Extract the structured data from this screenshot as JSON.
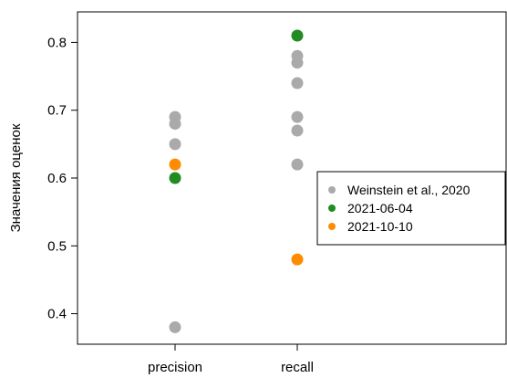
{
  "chart_data": {
    "type": "scatter",
    "title": "",
    "xlabel": "",
    "ylabel": "Значения оценок",
    "categories": [
      "precision",
      "recall"
    ],
    "ylim": [
      0.355,
      0.845
    ],
    "yticks": [
      "0.4",
      "0.5",
      "0.6",
      "0.7",
      "0.8"
    ],
    "grid": false,
    "legend_position": "right",
    "series": [
      {
        "name": "Weinstein et al., 2020",
        "color": "#aaaaaa",
        "points": [
          {
            "x": "precision",
            "y": 0.69
          },
          {
            "x": "precision",
            "y": 0.68
          },
          {
            "x": "precision",
            "y": 0.65
          },
          {
            "x": "precision",
            "y": 0.38
          },
          {
            "x": "recall",
            "y": 0.78
          },
          {
            "x": "recall",
            "y": 0.77
          },
          {
            "x": "recall",
            "y": 0.74
          },
          {
            "x": "recall",
            "y": 0.69
          },
          {
            "x": "recall",
            "y": 0.67
          },
          {
            "x": "recall",
            "y": 0.62
          }
        ]
      },
      {
        "name": "2021-06-04",
        "color": "#228b22",
        "points": [
          {
            "x": "precision",
            "y": 0.6
          },
          {
            "x": "recall",
            "y": 0.81
          }
        ]
      },
      {
        "name": "2021-10-10",
        "color": "#ff8c00",
        "points": [
          {
            "x": "precision",
            "y": 0.62
          },
          {
            "x": "recall",
            "y": 0.48
          }
        ]
      }
    ]
  }
}
